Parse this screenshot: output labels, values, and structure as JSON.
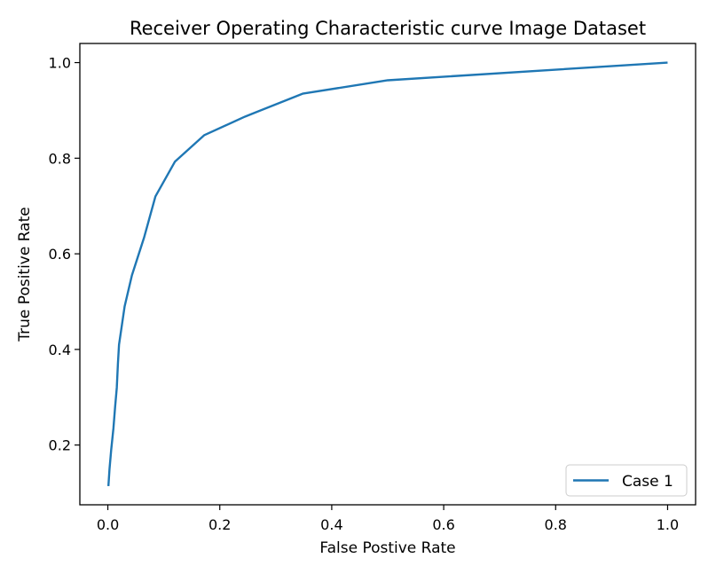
{
  "chart_data": {
    "type": "line",
    "title": "Receiver Operating Characteristic curve Image Dataset",
    "xlabel": "False Postive Rate",
    "ylabel": "True Positive Rate",
    "xlim": [
      -0.05,
      1.05
    ],
    "ylim": [
      0.075,
      1.04
    ],
    "xticks": [
      0.0,
      0.2,
      0.4,
      0.6,
      0.8,
      1.0
    ],
    "xtick_labels": [
      "0.0",
      "0.2",
      "0.4",
      "0.6",
      "0.8",
      "1.0"
    ],
    "yticks": [
      0.2,
      0.4,
      0.6,
      0.8,
      1.0
    ],
    "ytick_labels": [
      "0.2",
      "0.4",
      "0.6",
      "0.8",
      "1.0"
    ],
    "grid": false,
    "legend_position": "lower-right",
    "series": [
      {
        "name": "Case 1",
        "color": "#1f77b4",
        "x": [
          0.001,
          0.003,
          0.006,
          0.01,
          0.013,
          0.016,
          0.018,
          0.02,
          0.03,
          0.043,
          0.065,
          0.085,
          0.12,
          0.172,
          0.245,
          0.348,
          0.5,
          1.0
        ],
        "y": [
          0.114,
          0.15,
          0.19,
          0.235,
          0.28,
          0.32,
          0.37,
          0.41,
          0.49,
          0.555,
          0.635,
          0.72,
          0.793,
          0.848,
          0.887,
          0.935,
          0.963,
          1.0
        ]
      }
    ]
  }
}
